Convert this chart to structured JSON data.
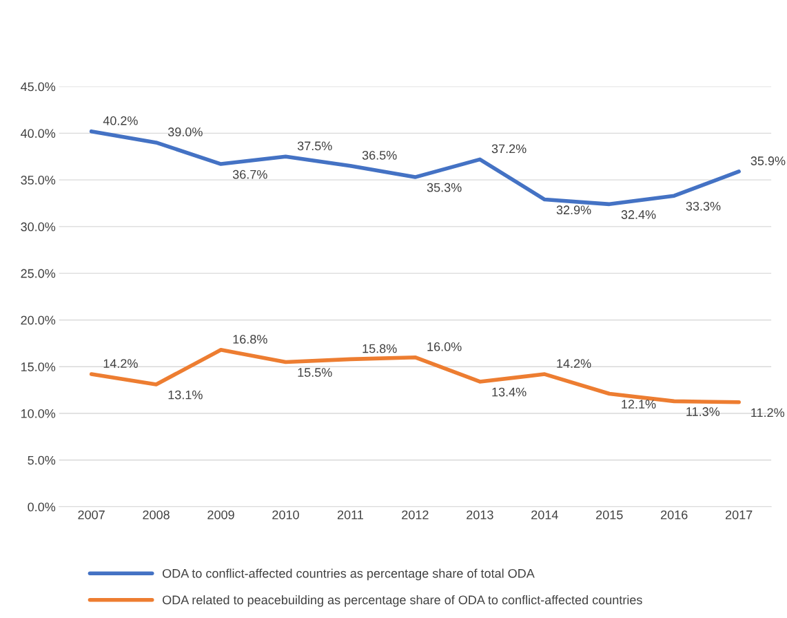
{
  "chart_data": {
    "type": "line",
    "categories": [
      "2007",
      "2008",
      "2009",
      "2010",
      "2011",
      "2012",
      "2013",
      "2014",
      "2015",
      "2016",
      "2017"
    ],
    "series": [
      {
        "name": "ODA to conflict-affected countries as percentage share of total ODA",
        "color": "#4472c4",
        "values": [
          40.2,
          39.0,
          36.7,
          37.5,
          36.5,
          35.3,
          37.2,
          32.9,
          32.4,
          33.3,
          35.9
        ],
        "value_labels": [
          "40.2%",
          "39.0%",
          "36.7%",
          "37.5%",
          "36.5%",
          "35.3%",
          "37.2%",
          "32.9%",
          "32.4%",
          "33.3%",
          "35.9%"
        ]
      },
      {
        "name": "ODA related to peacebuilding as percentage share of ODA to conflict-affected countries",
        "color": "#ed7d31",
        "values": [
          14.2,
          13.1,
          16.8,
          15.5,
          15.8,
          16.0,
          13.4,
          14.2,
          12.1,
          11.3,
          11.2
        ],
        "value_labels": [
          "14.2%",
          "13.1%",
          "16.8%",
          "15.5%",
          "15.8%",
          "16.0%",
          "13.4%",
          "14.2%",
          "12.1%",
          "11.3%",
          "11.2%"
        ]
      }
    ],
    "ylim": [
      0,
      45
    ],
    "yticks": [
      {
        "value": 0,
        "label": "0.0%"
      },
      {
        "value": 5,
        "label": "5.0%"
      },
      {
        "value": 10,
        "label": "10.0%"
      },
      {
        "value": 15,
        "label": "15.0%"
      },
      {
        "value": 20,
        "label": "20.0%"
      },
      {
        "value": 25,
        "label": "25.0%"
      },
      {
        "value": 30,
        "label": "30.0%"
      },
      {
        "value": 35,
        "label": "35.0%"
      },
      {
        "value": 40,
        "label": "40.0%"
      },
      {
        "value": 45,
        "label": "45.0%"
      }
    ],
    "grid": "y",
    "legend": "bottom",
    "marker": "none",
    "line_style": "solid"
  }
}
